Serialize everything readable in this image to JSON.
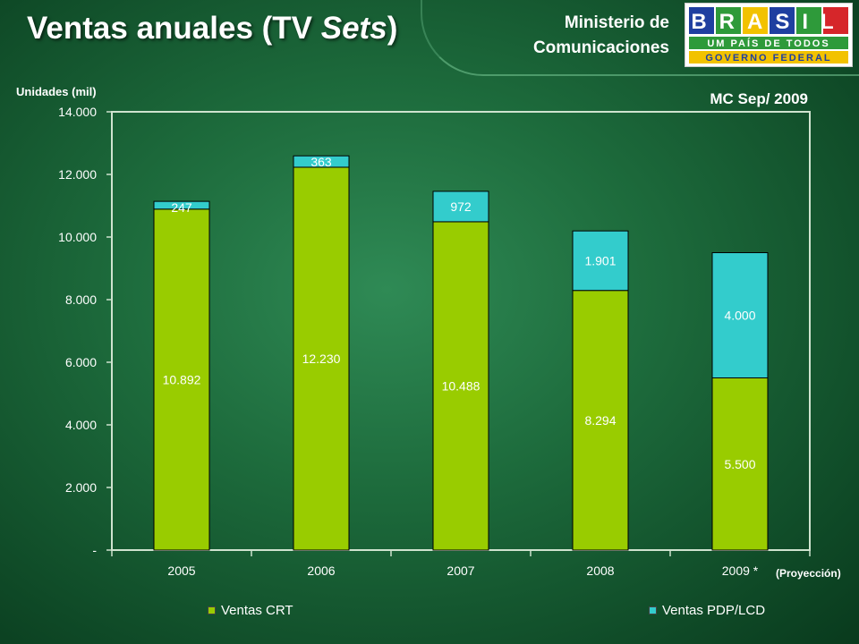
{
  "header": {
    "title_main": "Ventas anuales (TV ",
    "title_italic": "Sets",
    "title_end": ")",
    "ministry_line1": "Ministerio de",
    "ministry_line2": "Comunicaciones",
    "source_label": "MC  Sep/ 2009",
    "units_label": "Unidades (mil)"
  },
  "logo": {
    "word": "BRASIL",
    "slogan": "UM PAÍS DE TODOS",
    "subtitle": "GOVERNO FEDERAL",
    "colors": {
      "blue": "#1f3fa0",
      "green": "#2e9a3a",
      "yellow": "#f2c200",
      "red": "#d6262a"
    }
  },
  "colors": {
    "crt": "#99cc00",
    "lcd": "#33cccc",
    "plot_border": "#cfe3cf",
    "label": "#ffffff"
  },
  "chart_data": {
    "type": "bar",
    "stacked": true,
    "categories": [
      "2005",
      "2006",
      "2007",
      "2008",
      "2009 *"
    ],
    "series": [
      {
        "name": "Ventas CRT",
        "values": [
          10892,
          12230,
          10488,
          8294,
          5500
        ],
        "labels": [
          "10.892",
          "12.230",
          "10.488",
          "8.294",
          "5.500"
        ]
      },
      {
        "name": "Ventas PDP/LCD",
        "values": [
          247,
          363,
          972,
          1901,
          4000
        ],
        "labels": [
          "247",
          "363",
          "972",
          "1.901",
          "4.000"
        ]
      }
    ],
    "ylim": [
      0,
      14000
    ],
    "yticks": [
      0,
      2000,
      4000,
      6000,
      8000,
      10000,
      12000,
      14000
    ],
    "ytick_labels": [
      "-",
      "2.000",
      "4.000",
      "6.000",
      "8.000",
      "10.000",
      "12.000",
      "14.000"
    ],
    "ylabel": "Unidades (mil)",
    "note": "(Proyección)",
    "legend_position": "bottom",
    "grid": false
  }
}
